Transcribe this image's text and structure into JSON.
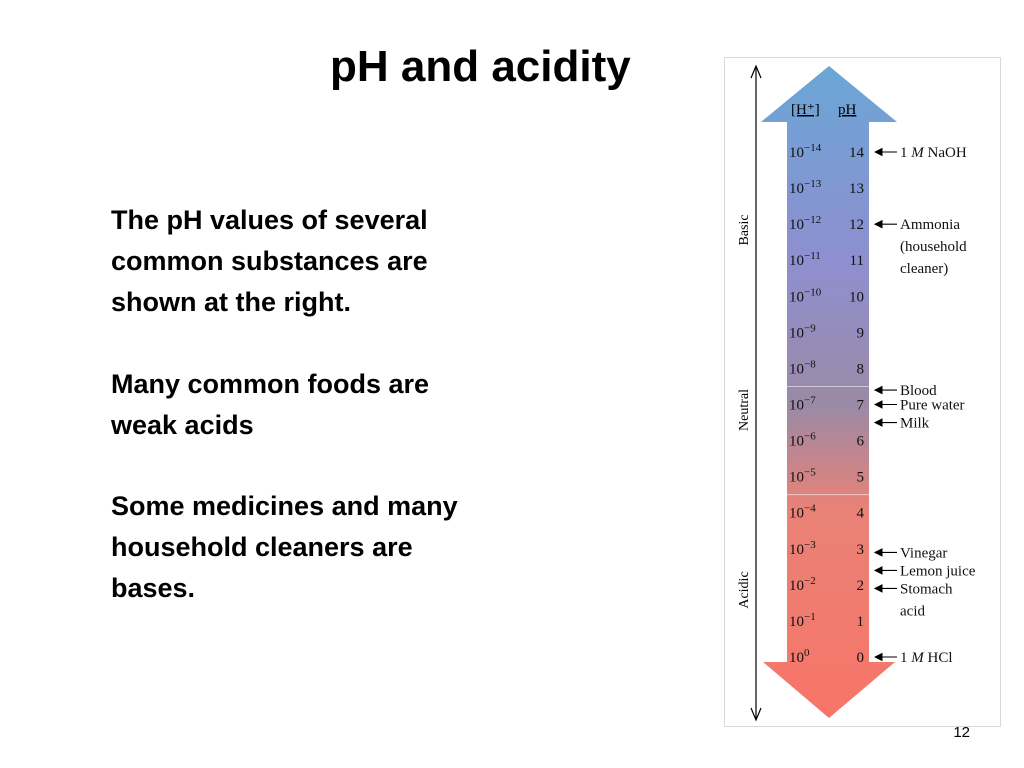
{
  "slide": {
    "title": "pH and acidity",
    "paragraphs": [
      [
        "The pH values of several",
        "common substances are",
        "shown at the right."
      ],
      [
        "Many common foods are",
        "weak acids"
      ],
      [
        "Some medicines and many",
        "household cleaners are",
        "bases."
      ]
    ],
    "slide_number": "12"
  },
  "diagram": {
    "header_h": "[H⁺]",
    "header_ph": "pH",
    "regions": [
      "Basic",
      "Neutral",
      "Acidic"
    ],
    "rows": [
      {
        "exp": "−14",
        "ph": "14"
      },
      {
        "exp": "−13",
        "ph": "13"
      },
      {
        "exp": "−12",
        "ph": "12"
      },
      {
        "exp": "−11",
        "ph": "11"
      },
      {
        "exp": "−10",
        "ph": "10"
      },
      {
        "exp": "−9",
        "ph": "9"
      },
      {
        "exp": "−8",
        "ph": "8"
      },
      {
        "exp": "−7",
        "ph": "7"
      },
      {
        "exp": "−6",
        "ph": "6"
      },
      {
        "exp": "−5",
        "ph": "5"
      },
      {
        "exp": "−4",
        "ph": "4"
      },
      {
        "exp": "−3",
        "ph": "3"
      },
      {
        "exp": "−2",
        "ph": "2"
      },
      {
        "exp": "−1",
        "ph": "1"
      },
      {
        "exp": "0",
        "ph": "0"
      }
    ],
    "substances": [
      {
        "ph": 14,
        "lines": [
          "1 M NaOH"
        ],
        "italic_m": true
      },
      {
        "ph": 12,
        "lines": [
          "Ammonia",
          "(household",
          " cleaner)"
        ]
      },
      {
        "ph": 7.4,
        "lines": [
          "Blood"
        ]
      },
      {
        "ph": 7,
        "lines": [
          "Pure water"
        ]
      },
      {
        "ph": 6.5,
        "lines": [
          "Milk"
        ]
      },
      {
        "ph": 2.9,
        "lines": [
          "Vinegar"
        ]
      },
      {
        "ph": 2.4,
        "lines": [
          "Lemon juice"
        ]
      },
      {
        "ph": 1.9,
        "lines": [
          "Stomach",
          "acid"
        ]
      },
      {
        "ph": 0,
        "lines": [
          "1 M HCl"
        ],
        "italic_m": true
      }
    ],
    "colors": {
      "top": "#6aa6d6",
      "basic": "#8f8fd0",
      "neutral": "#9a8aa6",
      "acid": "#e98277",
      "bottom": "#f87468"
    }
  }
}
